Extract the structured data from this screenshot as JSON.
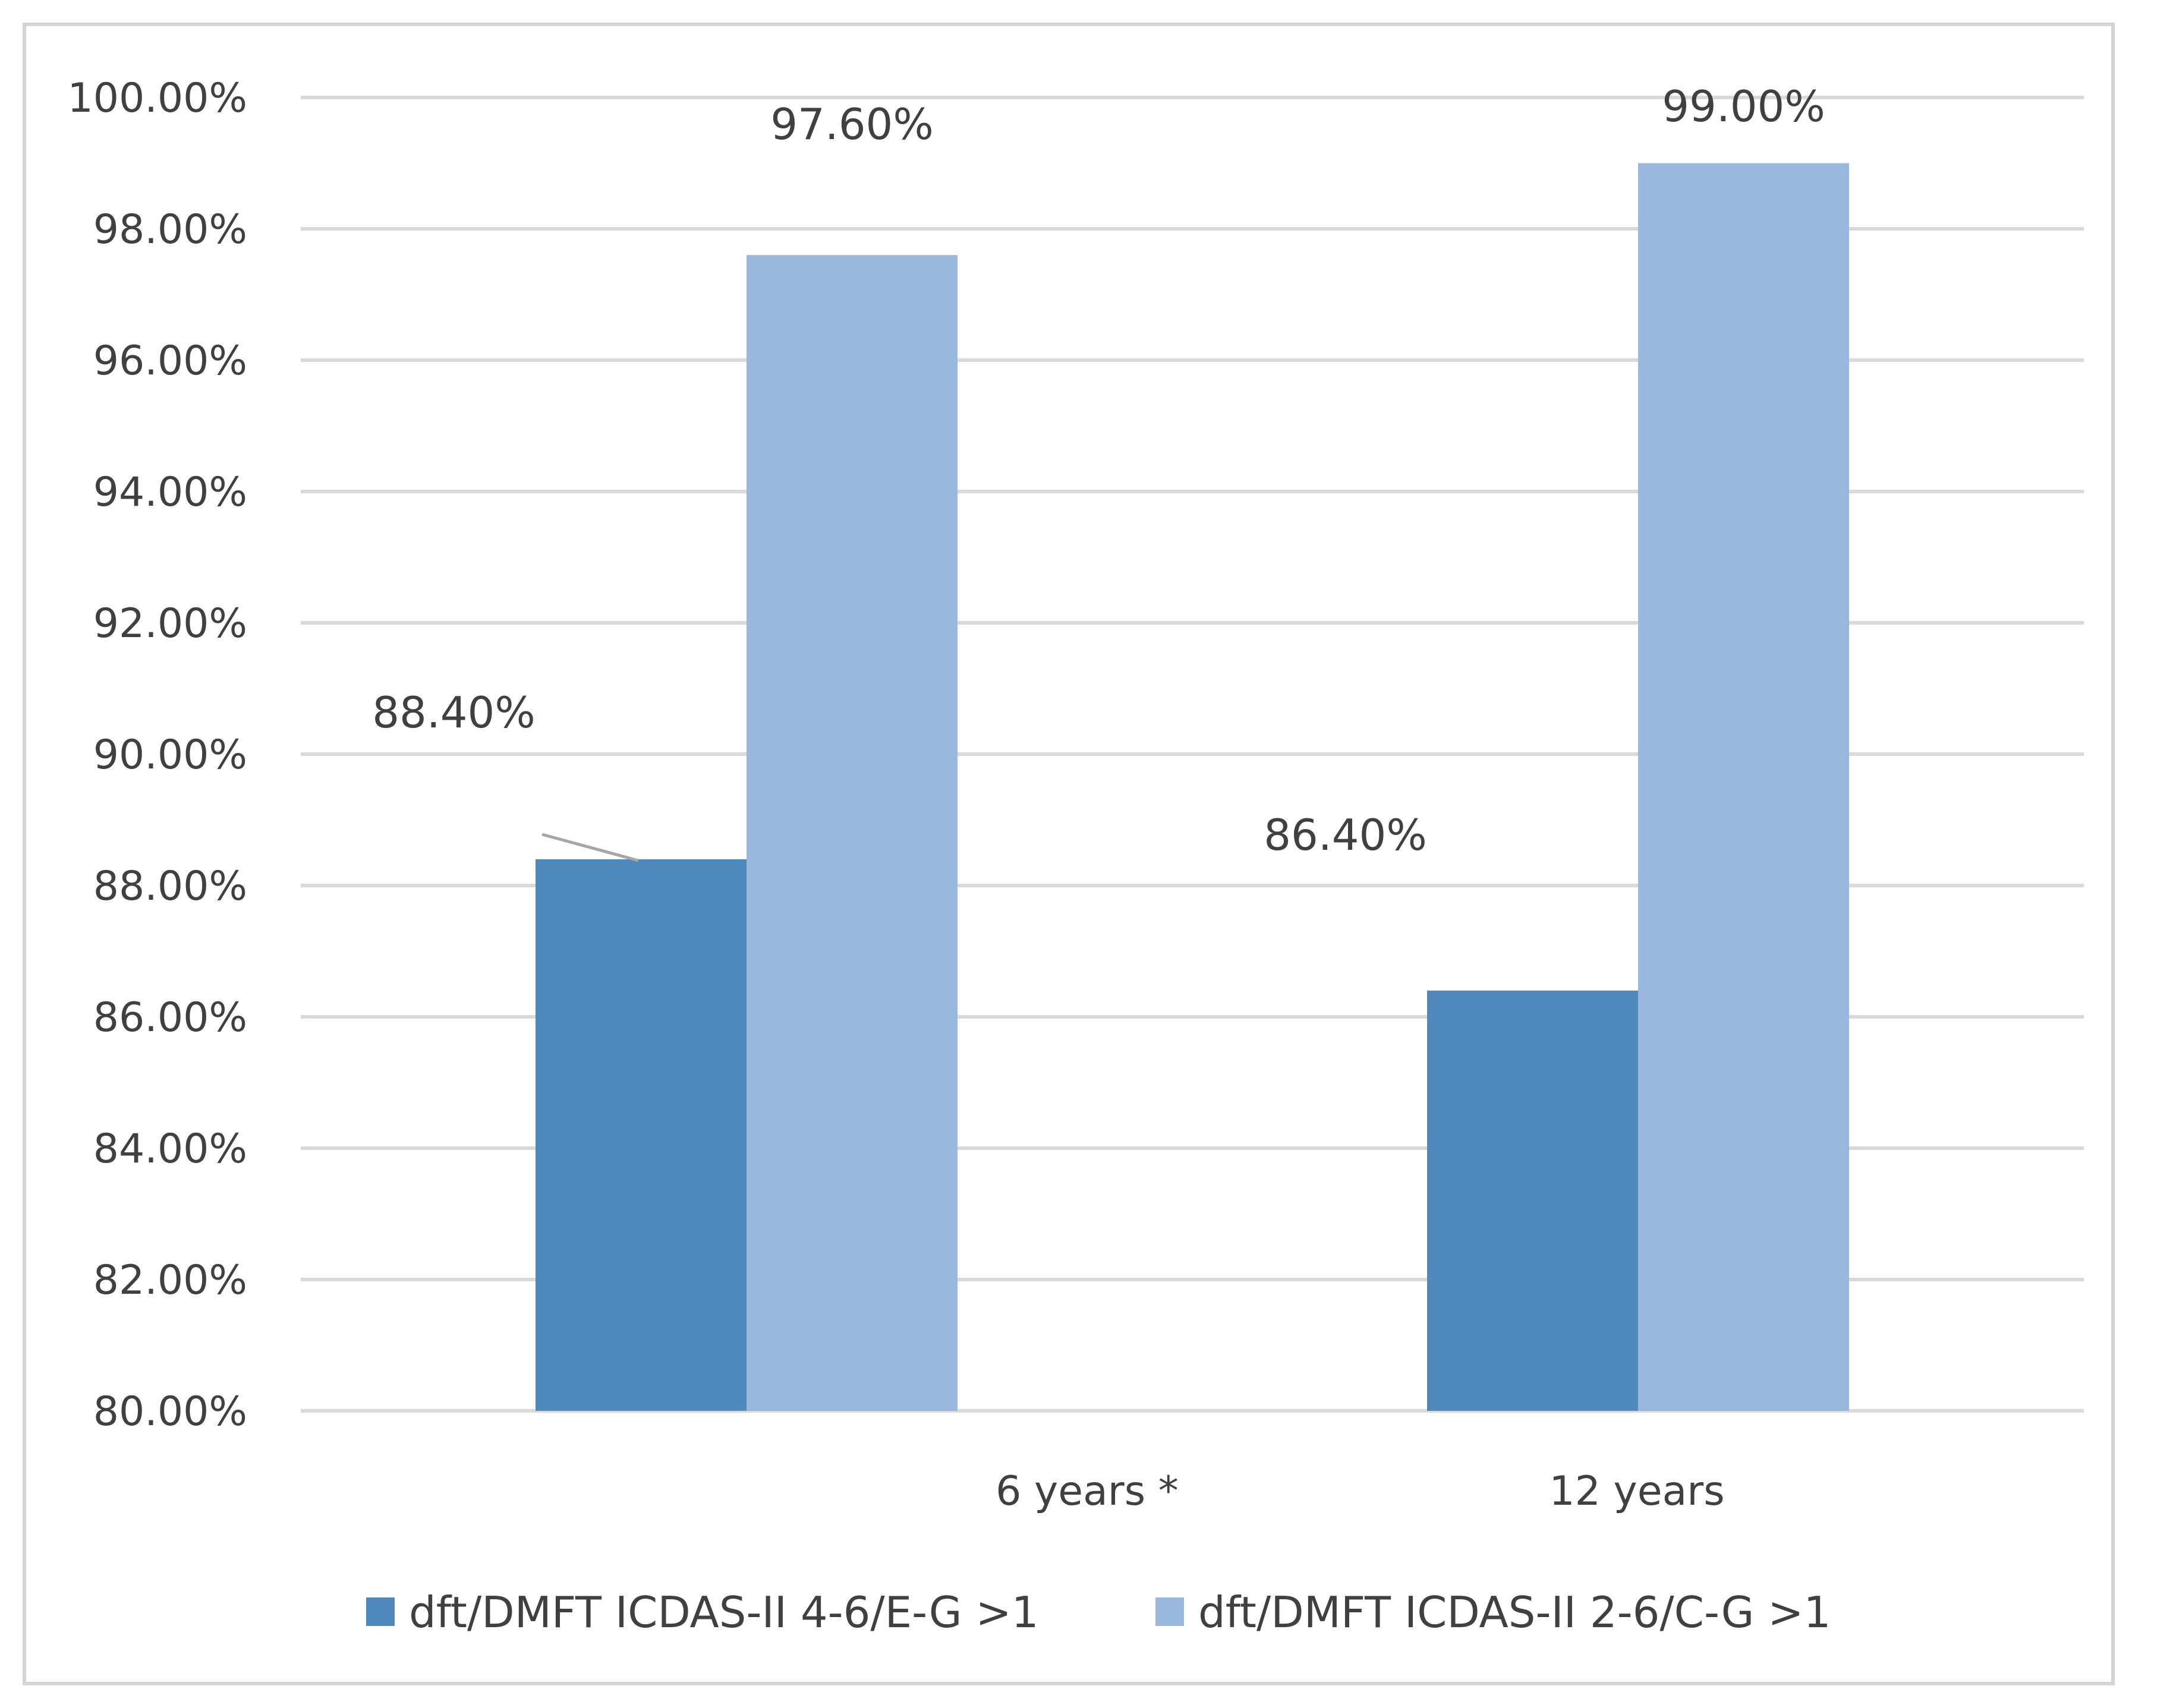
{
  "chart_data": {
    "type": "bar",
    "categories": [
      "6 years *",
      "12 years"
    ],
    "series": [
      {
        "name": "dft/DMFT ICDAS-II 4-6/E-G >1",
        "values": [
          88.4,
          86.4
        ],
        "labels": [
          "88.40%",
          "86.40%"
        ],
        "color": "#4f88bb"
      },
      {
        "name": "dft/DMFT ICDAS-II 2-6/C-G >1",
        "values": [
          97.6,
          99.0
        ],
        "labels": [
          "97.60%",
          "99.00%"
        ],
        "color": "#9ab8dd"
      }
    ],
    "ylim": [
      80,
      100
    ],
    "yticks": [
      "80.00%",
      "82.00%",
      "84.00%",
      "86.00%",
      "88.00%",
      "90.00%",
      "92.00%",
      "94.00%",
      "96.00%",
      "98.00%",
      "100.00%"
    ],
    "grid": true,
    "legend_position": "bottom",
    "gridline_color": "#d9d9d9",
    "axis_text_color": "#404040"
  }
}
